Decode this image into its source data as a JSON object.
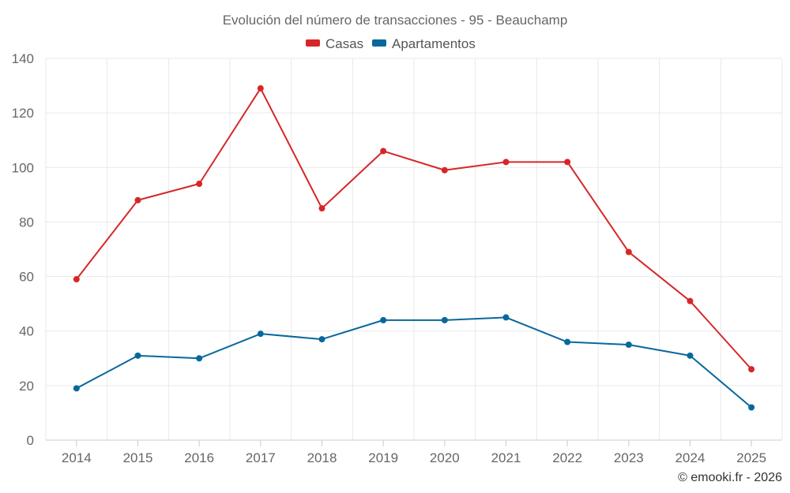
{
  "chart_data": {
    "type": "line",
    "title": "Evolución del número de transacciones - 95 - Beauchamp",
    "xlabel": "",
    "ylabel": "",
    "categories": [
      "2014",
      "2015",
      "2016",
      "2017",
      "2018",
      "2019",
      "2020",
      "2021",
      "2022",
      "2023",
      "2024",
      "2025"
    ],
    "ylim": [
      0,
      140
    ],
    "yticks": [
      0,
      20,
      40,
      60,
      80,
      100,
      120,
      140
    ],
    "grid": true,
    "legend_position": "top-center",
    "series": [
      {
        "name": "Casas",
        "color": "#d62728",
        "values": [
          59,
          88,
          94,
          129,
          85,
          106,
          99,
          102,
          102,
          69,
          51,
          26
        ]
      },
      {
        "name": "Apartamentos",
        "color": "#08689c",
        "values": [
          19,
          31,
          30,
          39,
          37,
          44,
          44,
          45,
          36,
          35,
          31,
          12
        ]
      }
    ]
  },
  "credit": "© emooki.fr - 2026"
}
